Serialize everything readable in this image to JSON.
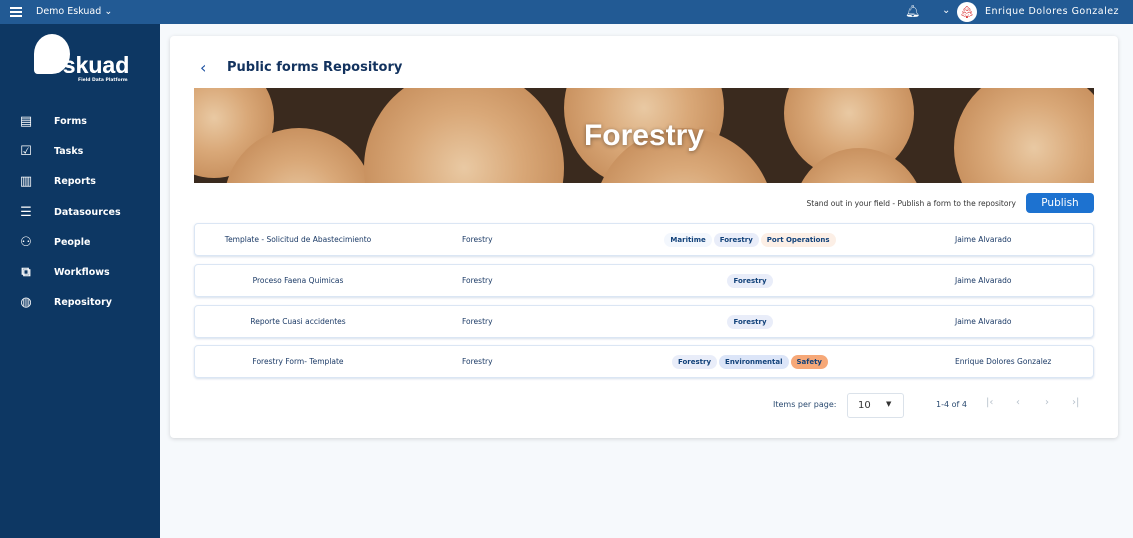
{
  "topbar": {
    "org": "Demo Eskuad",
    "user": "Enrique Dolores Gonzalez"
  },
  "sidebar": {
    "logo": "eskuad",
    "logo_sub": "Field Data Platform",
    "items": [
      {
        "label": "Forms",
        "icon": "form-icon"
      },
      {
        "label": "Tasks",
        "icon": "clipboard-check-icon"
      },
      {
        "label": "Reports",
        "icon": "bar-chart-icon"
      },
      {
        "label": "Datasources",
        "icon": "database-icon"
      },
      {
        "label": "People",
        "icon": "people-icon"
      },
      {
        "label": "Workflows",
        "icon": "workflow-icon"
      },
      {
        "label": "Repository",
        "icon": "globe-icon"
      }
    ]
  },
  "main": {
    "title": "Public forms Repository",
    "banner_title": "Forestry",
    "publish_text": "Stand out in your field - Publish a form to the repository",
    "publish_label": "Publish",
    "rows": [
      {
        "name": "Template - Solicitud de Abastecimiento",
        "category": "Forestry",
        "tags": [
          "Maritime",
          "Forestry",
          "Port Operations"
        ],
        "author": "Jaime Alvarado"
      },
      {
        "name": "Proceso Faena Quimicas",
        "category": "Forestry",
        "tags": [
          "Forestry"
        ],
        "author": "Jaime Alvarado"
      },
      {
        "name": "Reporte Cuasi accidentes",
        "category": "Forestry",
        "tags": [
          "Forestry"
        ],
        "author": "Jaime Alvarado"
      },
      {
        "name": "Forestry Form- Template",
        "category": "Forestry",
        "tags": [
          "Forestry",
          "Environmental",
          "Safety"
        ],
        "author": "Enrique Dolores Gonzalez"
      }
    ],
    "tag_colors": {
      "Maritime": "#f3f7fd",
      "Forestry": "#e9edf9",
      "Port Operations": "#fcefe6",
      "Environmental": "#dce5f8",
      "Safety": "#f6a878"
    },
    "pagination": {
      "items_per_page_label": "Items per page:",
      "items_per_page": "10",
      "range": "1-4 of 4"
    }
  },
  "colors": {
    "topbar": "#225a94",
    "sidebar": "#0d3763",
    "accent": "#1d72d0"
  }
}
